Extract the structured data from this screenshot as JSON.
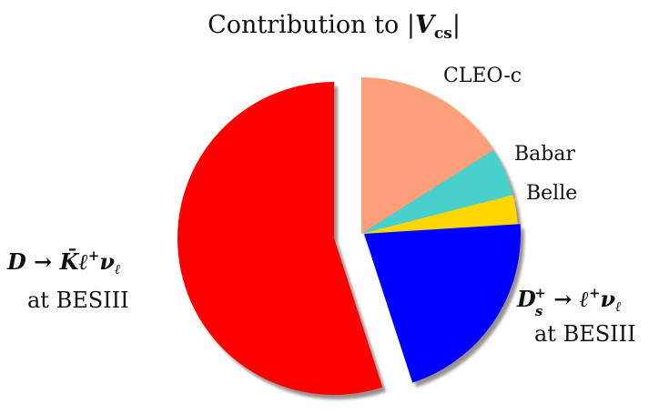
{
  "chart_data": {
    "type": "pie",
    "title": {
      "prefix": "Contribution to ",
      "bar_left": "|",
      "symbol": "V",
      "subscript": "cs",
      "bar_right": "|"
    },
    "slices": [
      {
        "key": "cleo",
        "label": "CLEO-c",
        "value": 16,
        "color": "#FFA07A",
        "exploded": false
      },
      {
        "key": "babar",
        "label": "Babar",
        "value": 5,
        "color": "#48D1CC",
        "exploded": false
      },
      {
        "key": "belle",
        "label": "Belle",
        "value": 3,
        "color": "#FFD700",
        "exploded": false
      },
      {
        "key": "ds",
        "label": "",
        "value": 21,
        "color": "#0000FF",
        "exploded": true
      },
      {
        "key": "dk",
        "label": "",
        "value": 55,
        "color": "#FF0000",
        "exploded": true
      }
    ],
    "start_angle_deg": 90,
    "direction": "clockwise",
    "shadow": true,
    "labels_rich": {
      "ds_line1": {
        "D": "D",
        "sub": "s",
        "sup": "+",
        "arrow": " → ",
        "l": "ℓ",
        "lsup": "+",
        "nu": "ν",
        "nusub": "ℓ"
      },
      "ds_line2": "at BESIII",
      "dk_line1": {
        "D": "D",
        "arrow": " → ",
        "K": "K̄",
        "l": "ℓ",
        "lsup": "+",
        "nu": "ν",
        "nusub": "ℓ"
      },
      "dk_line2": "at BESIII"
    }
  }
}
